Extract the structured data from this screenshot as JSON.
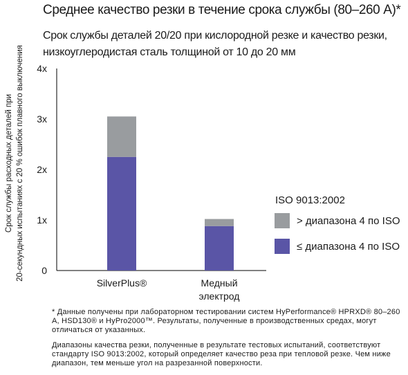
{
  "title": "Среднее качество резки в течение срока службы (80–260 А)*",
  "subtitle_lines": [
    "Срок службы деталей 20/20 при кислородной резке и качество резки,",
    "низкоуглеродистая сталь толщиной от 10 до 20 мм"
  ],
  "chart_data": {
    "type": "bar",
    "stacked": true,
    "categories": [
      "SilverPlus®",
      "Медный электрод"
    ],
    "series": [
      {
        "name": "≤ диапазона 4 по ISO",
        "color": "#5a55a6",
        "values": [
          2.25,
          0.88
        ]
      },
      {
        "name": "> диапазона 4 по ISO",
        "color": "#999c9f",
        "values": [
          0.8,
          0.14
        ]
      }
    ],
    "ylabel_lines": [
      "Срок службы расходных деталей при",
      "20-секундных испытаниях с 20 % ошибок плавного выключения"
    ],
    "yticks": [
      "0",
      "1x",
      "2x",
      "3x",
      "4x"
    ],
    "ylim": [
      0,
      4
    ],
    "grid": false,
    "legend_title": "ISO 9013:2002",
    "legend_position": "right"
  },
  "footnotes": [
    "* Данные получены при лабораторном тестировании систем HyPerformance® HPRXD® 80–260 A, HSD130® и HyPro2000™. Результаты, полученные в производственных средах, могут отличаться от указанных.",
    "Диапазоны качества резки, полученные в результате тестовых испытаний, соответствуют стандарту ISO 9013:2002, который определяет качество реза при тепловой резке. Чем ниже диапазон, тем меньше угол на разрезанной поверхности."
  ]
}
